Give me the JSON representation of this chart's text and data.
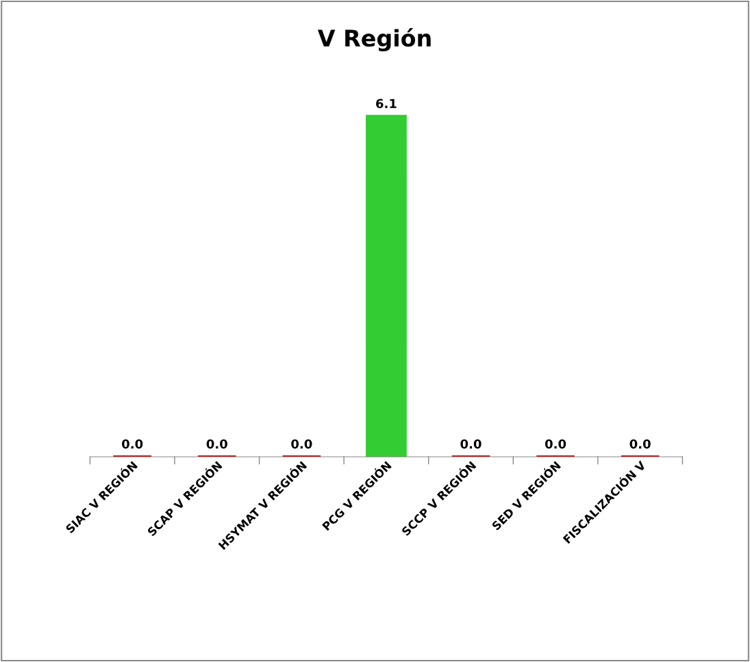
{
  "chart_data": {
    "type": "bar",
    "title": "V Región",
    "categories": [
      "SIAC V REGIÓN",
      "SCAP V REGIÓN",
      "HSYMAT V REGIÓN",
      "PCG V REGIÓN",
      "SCCP V REGIÓN",
      "SED V REGIÓN",
      "FISCALIZACIÓN V"
    ],
    "values": [
      0,
      0,
      0,
      6.1,
      0,
      0,
      0
    ],
    "colors": [
      "#cc0000",
      "#cc0000",
      "#cc0000",
      "#33cc33",
      "#cc0000",
      "#cc0000",
      "#cc0000"
    ],
    "value_labels": [
      "0.0",
      "0.0",
      "0.0",
      "6.1",
      "0.0",
      "0.0",
      "0.0"
    ],
    "grid": false,
    "legend": false
  }
}
